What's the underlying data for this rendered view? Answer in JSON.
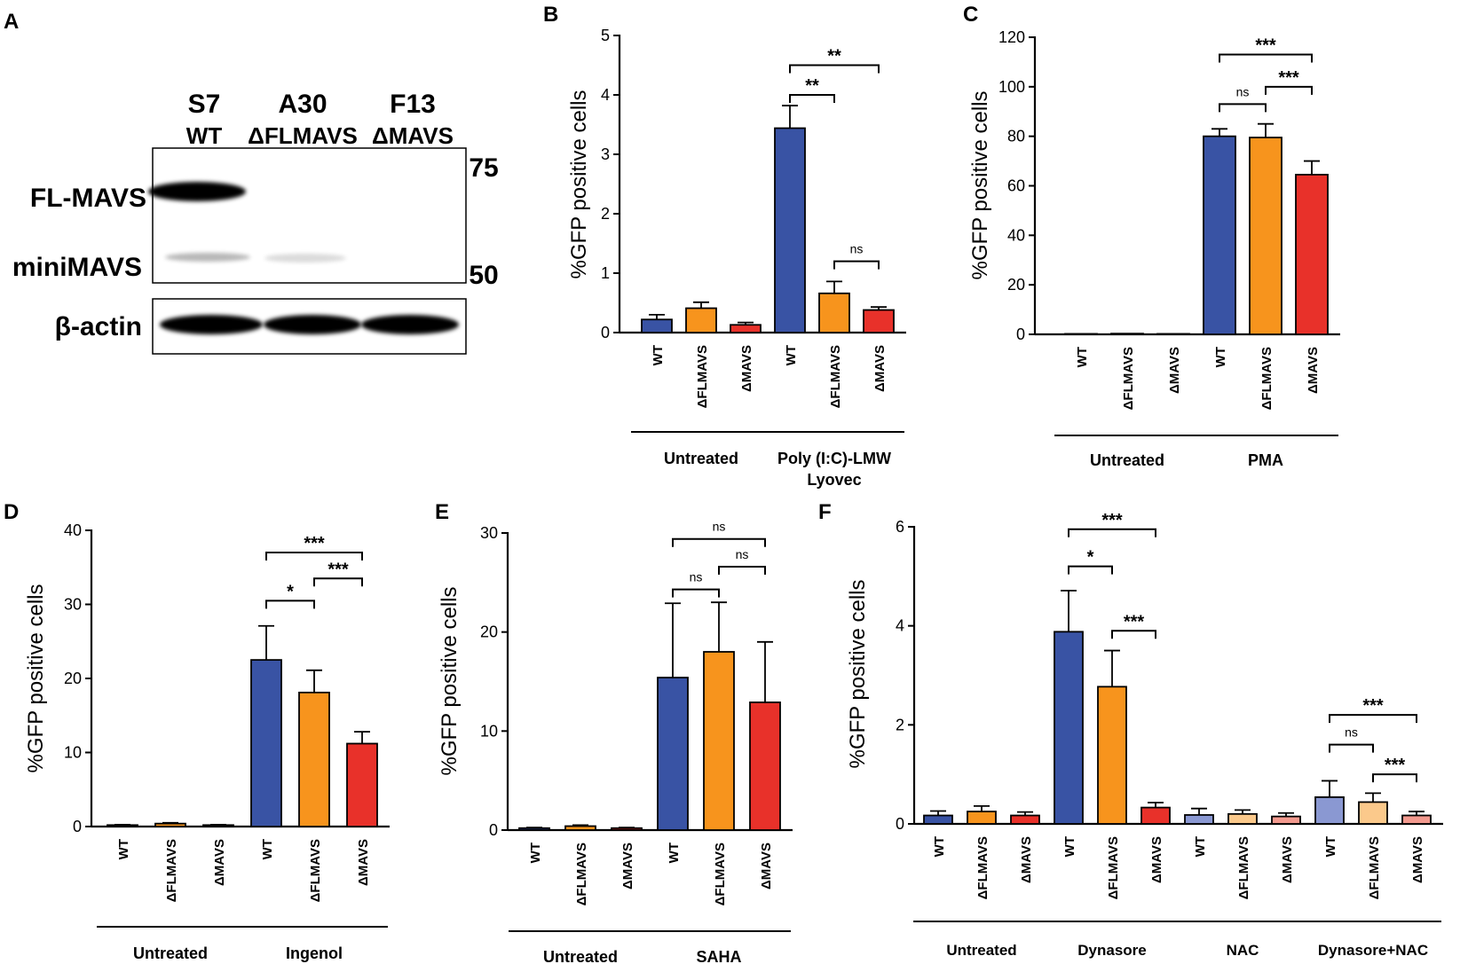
{
  "figure": {
    "panel_labels": [
      "A",
      "B",
      "C",
      "D",
      "E",
      "F"
    ]
  },
  "blot": {
    "lanes": [
      {
        "clone": "S7",
        "genotype": "WT"
      },
      {
        "clone": "A30",
        "genotype": "ΔFLMAVS"
      },
      {
        "clone": "F13",
        "genotype": "ΔMAVS"
      }
    ],
    "band_labels": [
      "FL-MAVS",
      "miniMAVS",
      "β-actin"
    ],
    "markers": [
      "75",
      "50"
    ]
  },
  "colors": {
    "WT": "#3953a4",
    "dFLMAVS": "#f7941d",
    "dMAVS": "#e8312a",
    "WT_light": "#8a98d2",
    "dFLMAVS_light": "#fbc98b",
    "dMAVS_light": "#f39a8f"
  },
  "chart_data": [
    {
      "panel": "B",
      "type": "bar",
      "ylabel": "%GFP positive cells",
      "ylim": [
        0,
        5
      ],
      "yticks": [
        0,
        1,
        2,
        3,
        4,
        5
      ],
      "categories": [
        "WT",
        "ΔFLMAVS",
        "ΔMAVS",
        "WT",
        "ΔFLMAVS",
        "ΔMAVS"
      ],
      "values": [
        0.22,
        0.41,
        0.13,
        3.44,
        0.66,
        0.38
      ],
      "errors": [
        0.08,
        0.1,
        0.04,
        0.38,
        0.2,
        0.05
      ],
      "color_keys": [
        "WT",
        "dFLMAVS",
        "dMAVS",
        "WT",
        "dFLMAVS",
        "dMAVS"
      ],
      "groups": [
        {
          "label": "Untreated",
          "label2": "",
          "start": 0,
          "end": 2
        },
        {
          "label": "Poly (I:C)-LMW",
          "label2": "Lyovec",
          "start": 3,
          "end": 5
        }
      ],
      "significance": [
        {
          "i": 3,
          "j": 4,
          "y": 4.0,
          "text": "**"
        },
        {
          "i": 3,
          "j": 5,
          "y": 4.5,
          "text": "**"
        },
        {
          "i": 4,
          "j": 5,
          "y": 1.2,
          "text": "ns"
        }
      ]
    },
    {
      "panel": "C",
      "type": "bar",
      "ylabel": "%GFP positive cells",
      "ylim": [
        0,
        120
      ],
      "yticks": [
        0,
        20,
        40,
        60,
        80,
        100,
        120
      ],
      "categories": [
        "WT",
        "ΔFLMAVS",
        "ΔMAVS",
        "WT",
        "ΔFLMAVS",
        "ΔMAVS"
      ],
      "values": [
        0.2,
        0.3,
        0.2,
        80,
        79.5,
        64.5
      ],
      "errors": [
        0,
        0,
        0,
        3,
        5.5,
        5.5
      ],
      "color_keys": [
        "WT",
        "dFLMAVS",
        "dMAVS",
        "WT",
        "dFLMAVS",
        "dMAVS"
      ],
      "groups": [
        {
          "label": "Untreated",
          "label2": "",
          "start": 0,
          "end": 2
        },
        {
          "label": "PMA",
          "label2": "",
          "start": 3,
          "end": 5
        }
      ],
      "significance": [
        {
          "i": 3,
          "j": 4,
          "y": 93,
          "text": "ns"
        },
        {
          "i": 4,
          "j": 5,
          "y": 100,
          "text": "***"
        },
        {
          "i": 3,
          "j": 5,
          "y": 113,
          "text": "***"
        }
      ]
    },
    {
      "panel": "D",
      "type": "bar",
      "ylabel": "%GFP positive cells",
      "ylim": [
        0,
        40
      ],
      "yticks": [
        0,
        10,
        20,
        30,
        40
      ],
      "categories": [
        "WT",
        "ΔFLMAVS",
        "ΔMAVS",
        "WT",
        "ΔFLMAVS",
        "ΔMAVS"
      ],
      "values": [
        0.2,
        0.4,
        0.2,
        22.5,
        18.1,
        11.2
      ],
      "errors": [
        0.05,
        0.1,
        0.05,
        4.6,
        3.0,
        1.6
      ],
      "color_keys": [
        "WT",
        "dFLMAVS",
        "dMAVS",
        "WT",
        "dFLMAVS",
        "dMAVS"
      ],
      "groups": [
        {
          "label": "Untreated",
          "label2": "",
          "start": 0,
          "end": 2
        },
        {
          "label": "Ingenol",
          "label2": "",
          "start": 3,
          "end": 5
        }
      ],
      "significance": [
        {
          "i": 3,
          "j": 4,
          "y": 30.5,
          "text": "*"
        },
        {
          "i": 4,
          "j": 5,
          "y": 33.5,
          "text": "***"
        },
        {
          "i": 3,
          "j": 5,
          "y": 37,
          "text": "***"
        }
      ]
    },
    {
      "panel": "E",
      "type": "bar",
      "ylabel": "%GFP positive cells",
      "ylim": [
        0,
        30
      ],
      "yticks": [
        0,
        10,
        20,
        30
      ],
      "categories": [
        "WT",
        "ΔFLMAVS",
        "ΔMAVS",
        "WT",
        "ΔFLMAVS",
        "ΔMAVS"
      ],
      "values": [
        0.2,
        0.4,
        0.2,
        15.4,
        18.0,
        12.9
      ],
      "errors": [
        0.05,
        0.1,
        0.05,
        7.5,
        5.0,
        6.1
      ],
      "color_keys": [
        "WT",
        "dFLMAVS",
        "dMAVS",
        "WT",
        "dFLMAVS",
        "dMAVS"
      ],
      "groups": [
        {
          "label": "Untreated",
          "label2": "",
          "start": 0,
          "end": 2
        },
        {
          "label": "SAHA",
          "label2": "",
          "start": 3,
          "end": 5
        }
      ],
      "significance": [
        {
          "i": 3,
          "j": 4,
          "y": 24.3,
          "text": "ns"
        },
        {
          "i": 4,
          "j": 5,
          "y": 26.6,
          "text": "ns"
        },
        {
          "i": 3,
          "j": 5,
          "y": 29.4,
          "text": "ns"
        }
      ]
    },
    {
      "panel": "F",
      "type": "bar",
      "ylabel": "%GFP positive cells",
      "ylim": [
        0,
        6
      ],
      "yticks": [
        0,
        2,
        4,
        6
      ],
      "categories": [
        "WT",
        "ΔFLMAVS",
        "ΔMAVS",
        "WT",
        "ΔFLMAVS",
        "ΔMAVS",
        "WT",
        "ΔFLMAVS",
        "ΔMAVS",
        "WT",
        "ΔFLMAVS",
        "ΔMAVS"
      ],
      "values": [
        0.17,
        0.25,
        0.17,
        3.88,
        2.77,
        0.33,
        0.18,
        0.2,
        0.15,
        0.54,
        0.44,
        0.17
      ],
      "errors": [
        0.09,
        0.11,
        0.07,
        0.83,
        0.73,
        0.1,
        0.13,
        0.08,
        0.07,
        0.33,
        0.18,
        0.08
      ],
      "color_keys": [
        "WT",
        "dFLMAVS",
        "dMAVS",
        "WT",
        "dFLMAVS",
        "dMAVS",
        "WT_light",
        "dFLMAVS_light",
        "dMAVS_light",
        "WT_light",
        "dFLMAVS_light",
        "dMAVS_light"
      ],
      "groups": [
        {
          "label": "Untreated",
          "label2": "",
          "start": 0,
          "end": 2
        },
        {
          "label": "Dynasore",
          "label2": "",
          "start": 3,
          "end": 5
        },
        {
          "label": "NAC",
          "label2": "",
          "start": 6,
          "end": 8
        },
        {
          "label": "Dynasore+NAC",
          "label2": "",
          "start": 9,
          "end": 11
        }
      ],
      "significance": [
        {
          "i": 3,
          "j": 4,
          "y": 5.2,
          "text": "*"
        },
        {
          "i": 3,
          "j": 5,
          "y": 5.95,
          "text": "***"
        },
        {
          "i": 4,
          "j": 5,
          "y": 3.9,
          "text": "***"
        },
        {
          "i": 9,
          "j": 10,
          "y": 1.6,
          "text": "ns"
        },
        {
          "i": 10,
          "j": 11,
          "y": 1.0,
          "text": "***"
        },
        {
          "i": 9,
          "j": 11,
          "y": 2.2,
          "text": "***"
        }
      ]
    }
  ]
}
